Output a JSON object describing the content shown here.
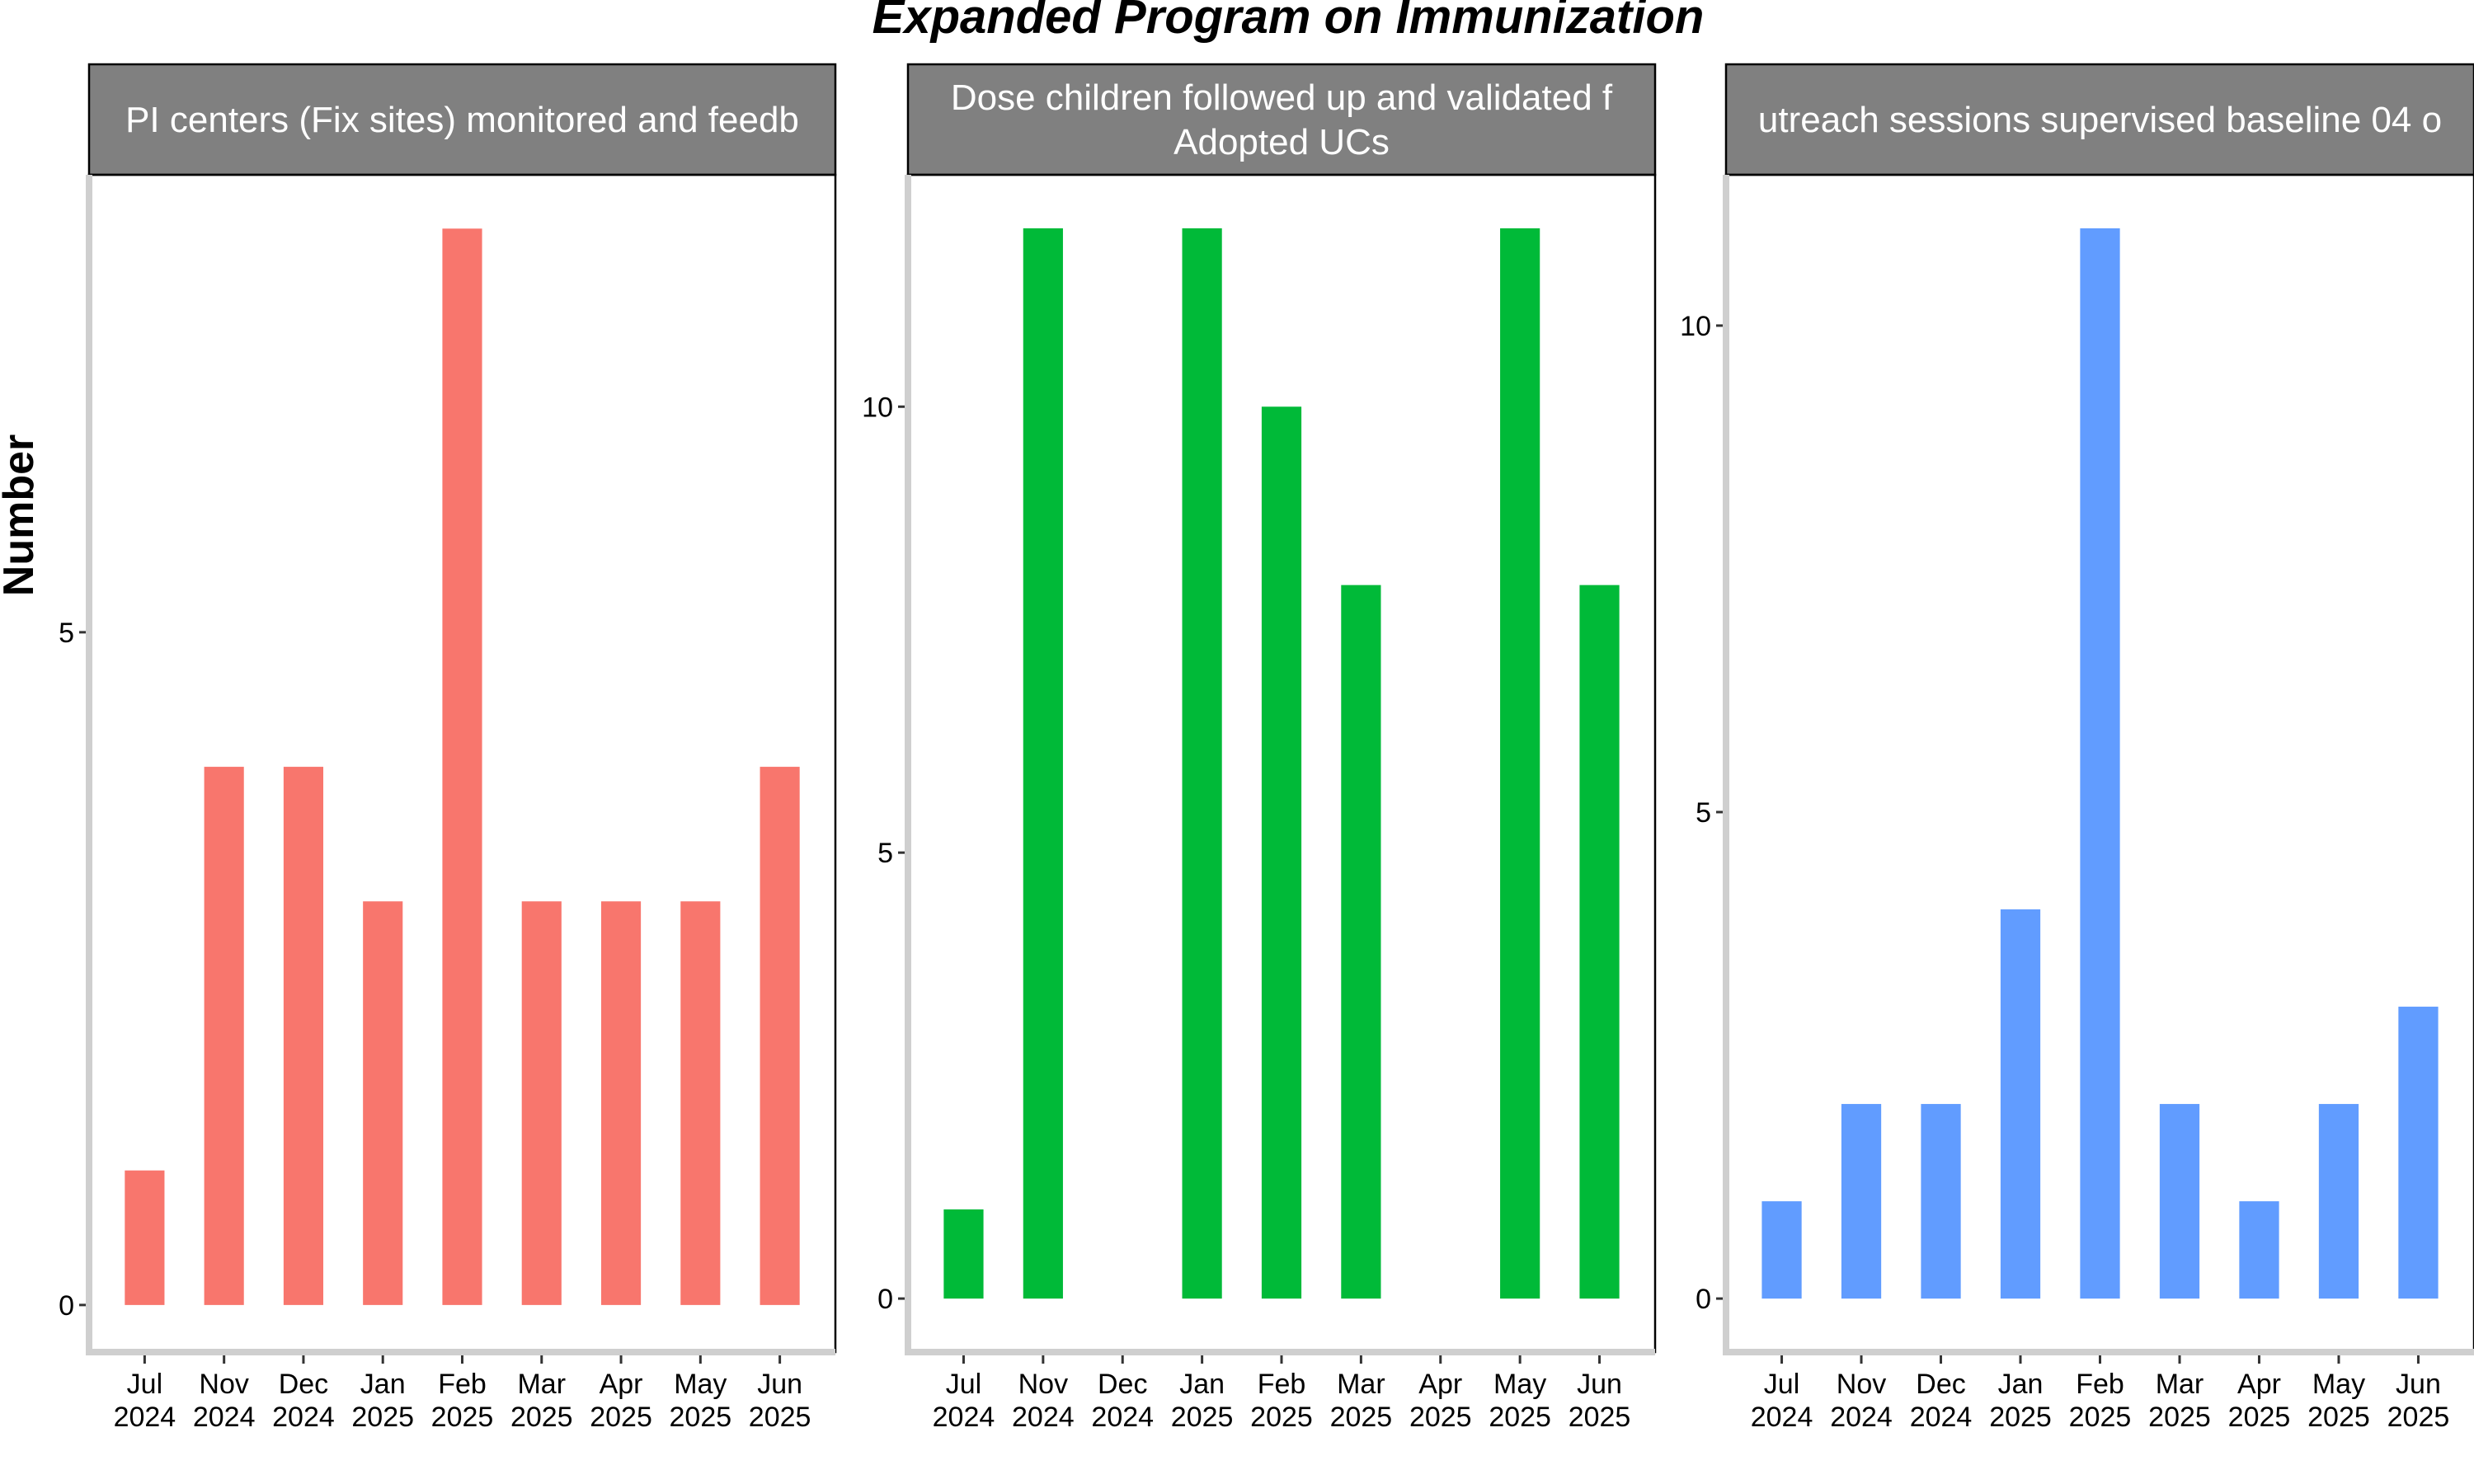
{
  "chart_data": {
    "type": "bar",
    "title": "Expanded Program on Immunization",
    "ylabel": "Number",
    "xlabel": "",
    "categories": [
      [
        "Jul",
        "2024"
      ],
      [
        "Nov",
        "2024"
      ],
      [
        "Dec",
        "2024"
      ],
      [
        "Jan",
        "2025"
      ],
      [
        "Feb",
        "2025"
      ],
      [
        "Mar",
        "2025"
      ],
      [
        "Apr",
        "2025"
      ],
      [
        "May",
        "2025"
      ],
      [
        "Jun",
        "2025"
      ]
    ],
    "panels": [
      {
        "strip_lines": [
          "PI centers (Fix sites) monitored and feedb"
        ],
        "color": "#F8766D",
        "values": [
          1,
          4,
          4,
          3,
          8,
          3,
          3,
          3,
          4
        ],
        "yticks": [
          0,
          5
        ],
        "ylim": [
          -0.35,
          8.4
        ]
      },
      {
        "strip_lines": [
          "Dose children followed up and validated f",
          "Adopted UCs"
        ],
        "color": "#00BA38",
        "values": [
          1,
          12,
          0,
          12,
          10,
          8,
          0,
          12,
          8
        ],
        "yticks": [
          0,
          5,
          10
        ],
        "ylim": [
          -0.6,
          12.6
        ]
      },
      {
        "strip_lines": [
          "utreach sessions supervised baseline 04 o"
        ],
        "color": "#619CFF",
        "values": [
          1,
          2,
          2,
          4,
          11,
          2,
          1,
          2,
          3
        ],
        "yticks": [
          0,
          5,
          10
        ],
        "ylim": [
          -0.55,
          11.55
        ]
      }
    ],
    "grid": false,
    "legend": "none"
  }
}
